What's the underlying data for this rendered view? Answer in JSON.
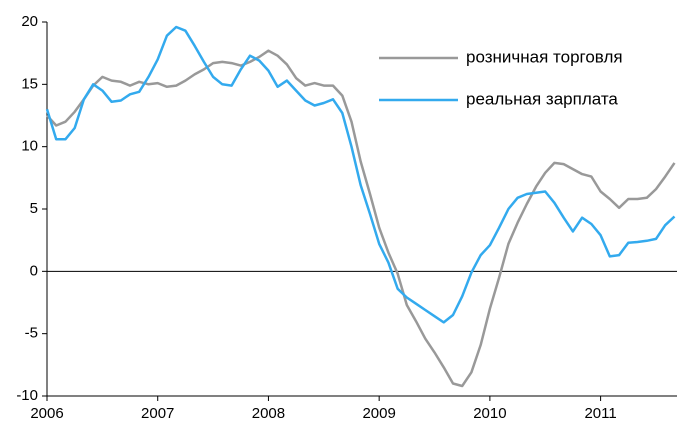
{
  "chart_data": {
    "type": "line",
    "x": [
      2006,
      2006.083,
      2006.167,
      2006.25,
      2006.333,
      2006.417,
      2006.5,
      2006.583,
      2006.667,
      2006.75,
      2006.833,
      2006.917,
      2007,
      2007.083,
      2007.167,
      2007.25,
      2007.333,
      2007.417,
      2007.5,
      2007.583,
      2007.667,
      2007.75,
      2007.833,
      2007.917,
      2008,
      2008.083,
      2008.167,
      2008.25,
      2008.333,
      2008.417,
      2008.5,
      2008.583,
      2008.667,
      2008.75,
      2008.833,
      2008.917,
      2009,
      2009.083,
      2009.167,
      2009.25,
      2009.333,
      2009.417,
      2009.5,
      2009.583,
      2009.667,
      2009.75,
      2009.833,
      2009.917,
      2010,
      2010.083,
      2010.167,
      2010.25,
      2010.333,
      2010.417,
      2010.5,
      2010.583,
      2010.667,
      2010.75,
      2010.833,
      2010.917,
      2011,
      2011.083,
      2011.167,
      2011.25,
      2011.333,
      2011.417,
      2011.5,
      2011.583,
      2011.667
    ],
    "series": [
      {
        "name": "розничная торговля",
        "color": "#999999",
        "values": [
          12.5,
          11.7,
          12.0,
          12.8,
          13.8,
          14.9,
          15.6,
          15.3,
          15.2,
          14.9,
          15.2,
          15.0,
          15.1,
          14.8,
          14.9,
          15.3,
          15.8,
          16.2,
          16.7,
          16.8,
          16.7,
          16.5,
          16.8,
          17.2,
          17.7,
          17.3,
          16.6,
          15.5,
          14.9,
          15.1,
          14.9,
          14.9,
          14.1,
          12.0,
          8.8,
          6.2,
          3.5,
          1.5,
          -0.2,
          -2.7,
          -4.0,
          -5.4,
          -6.5,
          -7.7,
          -9.0,
          -9.2,
          -8.1,
          -5.9,
          -3.0,
          -0.5,
          2.2,
          3.9,
          5.4,
          6.8,
          7.9,
          8.7,
          8.6,
          8.2,
          7.8,
          7.6,
          6.4,
          5.8,
          5.1,
          5.8,
          5.8,
          5.9,
          6.6,
          7.6,
          8.7
        ]
      },
      {
        "name": "реальная зарплата",
        "color": "#33aaee",
        "values": [
          13.0,
          10.6,
          10.6,
          11.5,
          13.8,
          15.0,
          14.5,
          13.6,
          13.7,
          14.2,
          14.4,
          15.6,
          17.0,
          18.9,
          19.6,
          19.3,
          18.1,
          16.8,
          15.6,
          15.0,
          14.9,
          16.2,
          17.3,
          16.9,
          16.1,
          14.8,
          15.3,
          14.5,
          13.7,
          13.3,
          13.5,
          13.8,
          12.7,
          10.0,
          6.9,
          4.6,
          2.2,
          0.7,
          -1.4,
          -2.1,
          -2.6,
          -3.1,
          -3.6,
          -4.1,
          -3.5,
          -2.0,
          -0.1,
          1.3,
          2.1,
          3.5,
          5.0,
          5.9,
          6.2,
          6.3,
          6.4,
          5.5,
          4.3,
          3.2,
          4.3,
          3.8,
          2.9,
          1.2,
          1.3,
          2.3,
          2.35,
          2.45,
          2.6,
          3.7,
          4.4
        ]
      }
    ],
    "xlim": [
      2006,
      2011.69
    ],
    "xticks": [
      2006,
      2007,
      2008,
      2009,
      2010,
      2011
    ],
    "ylim": [
      -10,
      20
    ],
    "yticks": [
      -10,
      -5,
      0,
      5,
      10,
      15,
      20
    ],
    "legend": "upper right"
  }
}
